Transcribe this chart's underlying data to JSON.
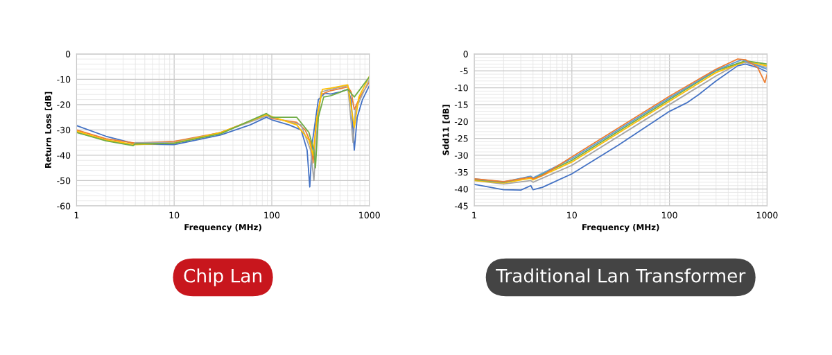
{
  "chart_data": [
    {
      "type": "line",
      "xlabel": "Frequency (MHz)",
      "ylabel": "Return Loss [dB]",
      "log": "x",
      "grid": true,
      "legend": false,
      "marker": "none",
      "line_style": "solid",
      "xlim": [
        1,
        1000
      ],
      "xticks": [
        1,
        10,
        100,
        1000
      ],
      "ylim": [
        -60,
        0
      ],
      "yticks": [
        -60,
        -50,
        -40,
        -30,
        -20,
        -10,
        0
      ],
      "annotations": [
        "Chip Lan"
      ],
      "series": [
        {
          "color": "#4472c4",
          "x": [
            1,
            2,
            4,
            10,
            30,
            60,
            88,
            100,
            150,
            200,
            230,
            245,
            260,
            300,
            350,
            400,
            500,
            600,
            650,
            700,
            750,
            850,
            1000
          ],
          "values": [
            -28.3,
            -32.5,
            -35.5,
            -35.8,
            -32,
            -28,
            -25,
            -26,
            -28,
            -30,
            -38,
            -52.5,
            -35,
            -18,
            -15.5,
            -15.8,
            -15,
            -14,
            -18,
            -38,
            -25,
            -18,
            -12.5
          ]
        },
        {
          "color": "#ed7d31",
          "x": [
            1,
            2,
            4,
            10,
            30,
            88,
            100,
            180,
            220,
            250,
            265,
            280,
            320,
            400,
            600,
            650,
            700,
            800,
            1000
          ],
          "values": [
            -30,
            -33.5,
            -35.2,
            -34.5,
            -31,
            -24,
            -25.5,
            -27,
            -30,
            -35,
            -43,
            -30,
            -16,
            -14.5,
            -13,
            -15,
            -22,
            -17,
            -11
          ]
        },
        {
          "color": "#a5a5a5",
          "x": [
            1,
            2,
            3.8,
            4,
            10,
            30,
            88,
            200,
            250,
            270,
            290,
            320,
            400,
            600,
            680,
            720,
            1000
          ],
          "values": [
            -31,
            -34,
            -36,
            -35,
            -35,
            -31,
            -24.5,
            -28,
            -38,
            -50,
            -30,
            -15,
            -14,
            -12.5,
            -35,
            -22,
            -10
          ]
        },
        {
          "color": "#ffc000",
          "x": [
            1,
            2,
            4,
            10,
            30,
            88,
            180,
            240,
            265,
            290,
            330,
            400,
            600,
            700,
            780,
            1000
          ],
          "values": [
            -30.5,
            -34,
            -35.8,
            -35.2,
            -31,
            -24,
            -28,
            -34,
            -40,
            -25,
            -14,
            -13.5,
            -12.2,
            -29,
            -17,
            -8.8
          ]
        },
        {
          "color": "#70ad47",
          "x": [
            1,
            2,
            3.8,
            4,
            10,
            30,
            88,
            100,
            180,
            240,
            270,
            280,
            300,
            340,
            400,
            600,
            700,
            1000
          ],
          "values": [
            -31,
            -34.3,
            -36.2,
            -35.5,
            -35.3,
            -31.5,
            -23.5,
            -25,
            -25,
            -31,
            -38,
            -45,
            -25,
            -17,
            -16.5,
            -14,
            -17,
            -9
          ]
        }
      ]
    },
    {
      "type": "line",
      "xlabel": "Frequency (MHz)",
      "ylabel": "Sdd11 [dB]",
      "log": "x",
      "grid": true,
      "legend": false,
      "marker": "none",
      "line_style": "solid",
      "xlim": [
        1,
        1000
      ],
      "xticks": [
        1,
        10,
        100,
        1000
      ],
      "ylim": [
        -45,
        0
      ],
      "yticks": [
        -45,
        -40,
        -35,
        -30,
        -25,
        -20,
        -15,
        -10,
        -5,
        0
      ],
      "annotations": [
        "Traditional Lan Transformer"
      ],
      "series": [
        {
          "color": "#4472c4",
          "x": [
            1,
            2,
            3,
            3.8,
            4,
            5,
            10,
            30,
            100,
            150,
            200,
            300,
            500,
            600,
            800,
            1000
          ],
          "values": [
            -38.6,
            -40.2,
            -40.3,
            -39,
            -40.2,
            -39.5,
            -35.5,
            -27,
            -17,
            -14.5,
            -12,
            -8,
            -3.5,
            -3,
            -4,
            -5.3
          ]
        },
        {
          "color": "#a5a5a5",
          "x": [
            1,
            2,
            3.8,
            4,
            10,
            100,
            300,
            500,
            600,
            1000
          ],
          "values": [
            -37.5,
            -38.5,
            -37.5,
            -38,
            -33,
            -15,
            -6.5,
            -3,
            -2.5,
            -4
          ]
        },
        {
          "color": "#ffc000",
          "x": [
            1,
            2,
            3.8,
            4,
            10,
            100,
            300,
            600,
            1000
          ],
          "values": [
            -37.5,
            -38.2,
            -36.8,
            -37.3,
            -32,
            -14,
            -5.5,
            -2.2,
            -3.5
          ]
        },
        {
          "color": "#70ad47",
          "x": [
            1,
            2,
            3.8,
            4,
            10,
            100,
            300,
            600,
            1000
          ],
          "values": [
            -37.2,
            -38,
            -36.3,
            -36.9,
            -31.5,
            -13.5,
            -5,
            -2,
            -3
          ]
        },
        {
          "color": "#5b9bd5",
          "x": [
            1,
            2,
            3.8,
            4,
            10,
            100,
            300,
            550,
            1000
          ],
          "values": [
            -37,
            -37.9,
            -36.2,
            -36.7,
            -31,
            -13,
            -4.8,
            -1.7,
            -4.5
          ]
        },
        {
          "color": "#ed7d31",
          "x": [
            1,
            2,
            3.8,
            4,
            5,
            10,
            100,
            300,
            500,
            600,
            800,
            950,
            1000
          ],
          "values": [
            -37,
            -37.8,
            -36.5,
            -37,
            -36,
            -30.5,
            -12.5,
            -4.5,
            -1.5,
            -1.7,
            -4,
            -8.5,
            -6
          ]
        }
      ]
    }
  ]
}
